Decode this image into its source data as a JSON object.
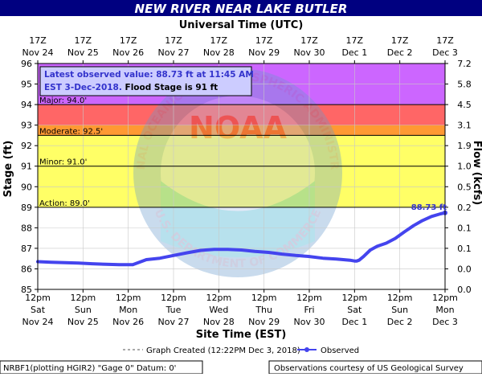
{
  "header": {
    "title": "NEW RIVER NEAR LAKE BUTLER",
    "top_axis_title": "Universal Time (UTC)",
    "bottom_axis_title": "Site Time (EST)",
    "title_bg": "#000080"
  },
  "info_box": {
    "line1": "Latest observed value: 88.73 ft at 11:45 AM",
    "line2_prefix": "EST 3-Dec-2018. ",
    "line2_bold": "Flood Stage is 91 ft"
  },
  "legend": {
    "graph_created": "Graph Created (12:22PM Dec 3, 2018)",
    "observed": "Observed"
  },
  "footer": {
    "left": "NRBF1(plotting HGIR2) \"Gage 0\" Datum: 0'",
    "right": "Observations courtesy of US Geological Survey"
  },
  "watermark": {
    "ring_top": "NATIONAL OCEANIC AND ATMOSPHERIC ADMINISTRATION",
    "ring_bottom": "U.S. DEPARTMENT OF COMMERCE",
    "center": "NOAA"
  },
  "colors": {
    "major": "#ff6666",
    "moderate": "#ff9933",
    "minor": "#ffff66",
    "action": "#ffff99",
    "record": "#cc66ff",
    "series": "#4444ee",
    "latest_label": "#3333cc"
  },
  "chart_data": {
    "type": "line",
    "ylabel": "Stage (ft)",
    "y2label": "Flow (kcfs)",
    "ylim": [
      85,
      96
    ],
    "y_ticks": [
      "85",
      "86",
      "87",
      "88",
      "89",
      "90",
      "91",
      "92",
      "93",
      "94",
      "95",
      "96"
    ],
    "y2_ticks": [
      {
        "stage": 85,
        "label": "0.0"
      },
      {
        "stage": 86,
        "label": "0.0"
      },
      {
        "stage": 87,
        "label": "0.1"
      },
      {
        "stage": 88,
        "label": "0.1"
      },
      {
        "stage": 89,
        "label": "0.2"
      },
      {
        "stage": 90,
        "label": "0.5"
      },
      {
        "stage": 91,
        "label": "1.0"
      },
      {
        "stage": 92,
        "label": "1.9"
      },
      {
        "stage": 93,
        "label": "3.1"
      },
      {
        "stage": 94,
        "label": "4.5"
      },
      {
        "stage": 95,
        "label": "5.8"
      },
      {
        "stage": 96,
        "label": "7.2"
      }
    ],
    "x_ticks_bottom": [
      {
        "line1": "12pm",
        "line2": "Sat",
        "line3": "Nov 24"
      },
      {
        "line1": "12pm",
        "line2": "Sun",
        "line3": "Nov 25"
      },
      {
        "line1": "12pm",
        "line2": "Mon",
        "line3": "Nov 26"
      },
      {
        "line1": "12pm",
        "line2": "Tue",
        "line3": "Nov 27"
      },
      {
        "line1": "12pm",
        "line2": "Wed",
        "line3": "Nov 28"
      },
      {
        "line1": "12pm",
        "line2": "Thu",
        "line3": "Nov 29"
      },
      {
        "line1": "12pm",
        "line2": "Fri",
        "line3": "Nov 30"
      },
      {
        "line1": "12pm",
        "line2": "Sat",
        "line3": "Dec 1"
      },
      {
        "line1": "12pm",
        "line2": "Sun",
        "line3": "Dec 2"
      },
      {
        "line1": "12pm",
        "line2": "Mon",
        "line3": "Dec 3"
      }
    ],
    "x_ticks_top": [
      {
        "line1": "17Z",
        "line2": "Nov 24"
      },
      {
        "line1": "17Z",
        "line2": "Nov 25"
      },
      {
        "line1": "17Z",
        "line2": "Nov 26"
      },
      {
        "line1": "17Z",
        "line2": "Nov 27"
      },
      {
        "line1": "17Z",
        "line2": "Nov 28"
      },
      {
        "line1": "17Z",
        "line2": "Nov 29"
      },
      {
        "line1": "17Z",
        "line2": "Nov 30"
      },
      {
        "line1": "17Z",
        "line2": "Dec 1"
      },
      {
        "line1": "17Z",
        "line2": "Dec 2"
      },
      {
        "line1": "17Z",
        "line2": "Dec 3"
      }
    ],
    "thresholds": [
      {
        "name": "Action",
        "label": "Action:  89.0'",
        "stage": 89.0
      },
      {
        "name": "Minor",
        "label": "Minor:  91.0'",
        "stage": 91.0
      },
      {
        "name": "Moderate",
        "label": "Moderate:  92.5'",
        "stage": 92.5
      },
      {
        "name": "Major",
        "label": "Major:  94.0'",
        "stage": 94.0
      }
    ],
    "series": [
      {
        "name": "Observed",
        "x_days": [
          0.0,
          0.3,
          0.6,
          0.9,
          1.2,
          1.5,
          1.8,
          2.1,
          2.4,
          2.7,
          3.0,
          3.3,
          3.6,
          3.9,
          4.2,
          4.5,
          4.8,
          5.1,
          5.4,
          5.7,
          6.0,
          6.3,
          6.6,
          6.9,
          7.0,
          7.05,
          7.1,
          7.2,
          7.35,
          7.5,
          7.7,
          7.9,
          8.1,
          8.3,
          8.5,
          8.7,
          8.9,
          9.0
        ],
        "y": [
          86.35,
          86.32,
          86.3,
          86.28,
          86.25,
          86.22,
          86.2,
          86.2,
          86.45,
          86.52,
          86.65,
          86.78,
          86.9,
          86.95,
          86.95,
          86.92,
          86.85,
          86.8,
          86.72,
          86.65,
          86.6,
          86.52,
          86.48,
          86.42,
          86.38,
          86.38,
          86.42,
          86.6,
          86.92,
          87.1,
          87.25,
          87.48,
          87.8,
          88.1,
          88.35,
          88.55,
          88.68,
          88.73
        ]
      }
    ],
    "latest_label": "88.73 ft"
  }
}
